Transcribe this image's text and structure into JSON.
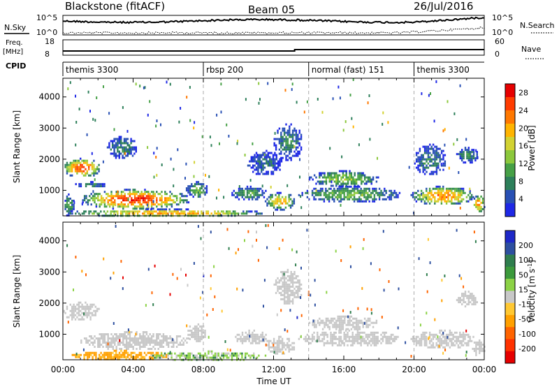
{
  "header": {
    "station": "Blackstone (fitACF)",
    "beam": "Beam 05",
    "date": "26/Jul/2016"
  },
  "noise_panel": {
    "left_label": "N.Sky",
    "right_label": "N.Search",
    "left_ticks": [
      "10^5",
      "10^0"
    ],
    "right_ticks": [
      "10^5",
      "10^0"
    ]
  },
  "freq_panel": {
    "left_label_1": "Freq.",
    "left_label_2": "[MHz]",
    "right_label": "Nave",
    "left_ticks": [
      "18",
      "8"
    ],
    "right_ticks": [
      "60",
      "0"
    ]
  },
  "cpid_panel": {
    "label": "CPID",
    "segments": [
      {
        "label": "themis 3300",
        "start_hour": 0
      },
      {
        "label": "rbsp 200",
        "start_hour": 8
      },
      {
        "label": "normal (fast) 151",
        "start_hour": 14
      },
      {
        "label": "themis 3300",
        "start_hour": 20
      }
    ]
  },
  "colors": {
    "power": [
      "#1e28e6",
      "#2850b4",
      "#2d7f5a",
      "#46a046",
      "#8cc83c",
      "#d2d232",
      "#ffb400",
      "#ff7800",
      "#ff3c00",
      "#e60000"
    ],
    "velocity": [
      "#1e28c8",
      "#2d4fa0",
      "#2f7e4e",
      "#3c9a3c",
      "#8cd246",
      "#c8c8c8",
      "#ffc832",
      "#ffa000",
      "#ff6400",
      "#ff3200",
      "#e60000"
    ]
  },
  "chart_data": [
    {
      "type": "heatmap",
      "name": "power-panel",
      "xlabel": "",
      "ylabel": "Slant Range [km]",
      "y_ticks": [
        1000,
        2000,
        3000,
        4000
      ],
      "ylim": [
        180,
        4600
      ],
      "xlim_hours": [
        0,
        24
      ],
      "colorbar": {
        "label": "Power [dB]",
        "ticks": [
          "4",
          "8",
          "12",
          "16",
          "20",
          "24",
          "28"
        ],
        "range": [
          0,
          30
        ]
      },
      "regions": [
        {
          "t0": 0.0,
          "t1": 2.1,
          "r0": 1450,
          "r1": 2050,
          "peak": 26
        },
        {
          "t0": 0.6,
          "t1": 2.4,
          "r0": 1100,
          "r1": 1300,
          "peak": 8
        },
        {
          "t0": 1.0,
          "t1": 7.2,
          "r0": 420,
          "r1": 1050,
          "peak": 27
        },
        {
          "t0": 0.3,
          "t1": 11.5,
          "r0": 180,
          "r1": 420,
          "peak": 22
        },
        {
          "t0": 0.0,
          "t1": 0.6,
          "r0": 180,
          "r1": 900,
          "peak": 10
        },
        {
          "t0": 2.5,
          "t1": 4.2,
          "r0": 2050,
          "r1": 2750,
          "peak": 8
        },
        {
          "t0": 7.0,
          "t1": 8.2,
          "r0": 800,
          "r1": 1300,
          "peak": 12
        },
        {
          "t0": 9.6,
          "t1": 11.6,
          "r0": 700,
          "r1": 1150,
          "peak": 10
        },
        {
          "t0": 11.5,
          "t1": 13.2,
          "r0": 400,
          "r1": 950,
          "peak": 20
        },
        {
          "t0": 12.0,
          "t1": 13.6,
          "r0": 2000,
          "r1": 3150,
          "peak": 8
        },
        {
          "t0": 10.5,
          "t1": 12.5,
          "r0": 1500,
          "r1": 2300,
          "peak": 6
        },
        {
          "t0": 14.0,
          "t1": 18.0,
          "r0": 1150,
          "r1": 1650,
          "peak": 14
        },
        {
          "t0": 13.4,
          "t1": 19.2,
          "r0": 650,
          "r1": 1150,
          "peak": 12
        },
        {
          "t0": 19.8,
          "t1": 23.4,
          "r0": 550,
          "r1": 1150,
          "peak": 23
        },
        {
          "t0": 20.0,
          "t1": 21.8,
          "r0": 1500,
          "r1": 2500,
          "peak": 8
        },
        {
          "t0": 22.4,
          "t1": 23.6,
          "r0": 1900,
          "r1": 2400,
          "peak": 8
        },
        {
          "t0": 23.3,
          "t1": 24.0,
          "r0": 300,
          "r1": 900,
          "peak": 22
        }
      ]
    },
    {
      "type": "heatmap",
      "name": "velocity-panel",
      "xlabel": "Time UT",
      "ylabel": "Slant Range [km]",
      "x_ticks": [
        "00:00",
        "04:00",
        "08:00",
        "12:00",
        "16:00",
        "20:00",
        "00:00"
      ],
      "y_ticks": [
        1000,
        2000,
        3000,
        4000
      ],
      "ylim": [
        180,
        4600
      ],
      "xlim_hours": [
        0,
        24
      ],
      "colorbar": {
        "label": "Velocity [m s-1]",
        "ticks": [
          "200",
          "100",
          "50",
          "15",
          "-15",
          "-50",
          "-100",
          "-200"
        ],
        "range": [
          -250,
          250
        ]
      },
      "regions": [
        {
          "t0": 0.0,
          "t1": 2.1,
          "r0": 1450,
          "r1": 2050,
          "v": 0
        },
        {
          "t0": 1.0,
          "t1": 7.2,
          "r0": 520,
          "r1": 1100,
          "v": 0
        },
        {
          "t0": 0.5,
          "t1": 6.0,
          "r0": 180,
          "r1": 500,
          "v": -70
        },
        {
          "t0": 5.0,
          "t1": 11.5,
          "r0": 180,
          "r1": 480,
          "v": 30
        },
        {
          "t0": 7.0,
          "t1": 8.2,
          "r0": 800,
          "r1": 1350,
          "v": 0
        },
        {
          "t0": 9.8,
          "t1": 11.6,
          "r0": 700,
          "r1": 1150,
          "v": 0
        },
        {
          "t0": 11.5,
          "t1": 13.2,
          "r0": 400,
          "r1": 950,
          "v": 0
        },
        {
          "t0": 12.0,
          "t1": 13.6,
          "r0": 2000,
          "r1": 3100,
          "v": 0
        },
        {
          "t0": 14.0,
          "t1": 18.0,
          "r0": 1150,
          "r1": 1600,
          "v": 0
        },
        {
          "t0": 13.4,
          "t1": 19.2,
          "r0": 650,
          "r1": 1150,
          "v": 0
        },
        {
          "t0": 19.8,
          "t1": 23.4,
          "r0": 550,
          "r1": 1150,
          "v": 0
        },
        {
          "t0": 22.4,
          "t1": 23.6,
          "r0": 1900,
          "r1": 2400,
          "v": 0
        },
        {
          "t0": 23.3,
          "t1": 24.0,
          "r0": 300,
          "r1": 900,
          "v": 0
        }
      ]
    }
  ]
}
